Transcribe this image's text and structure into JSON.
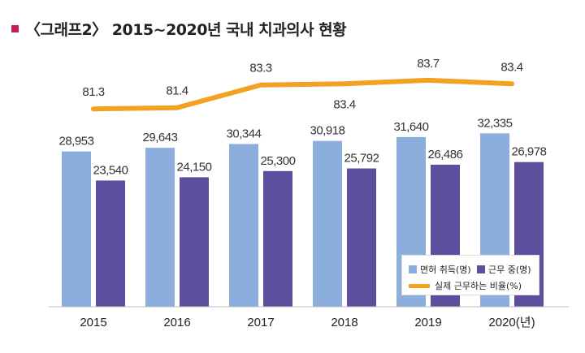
{
  "title": {
    "marker_symbol": "■",
    "text": "〈그래프2〉 2015~2020년 국내 치과의사 현황"
  },
  "colors": {
    "title_marker": "#c41e5a",
    "licensed": "#8caedc",
    "working": "#5d4e9e",
    "ratio": "#f4a020",
    "axis": "#bbbbbb"
  },
  "chart_data": {
    "type": "bar",
    "categories": [
      "2015",
      "2016",
      "2017",
      "2018",
      "2019",
      "2020(년)"
    ],
    "series": [
      {
        "name": "면허 취득(명)",
        "type": "bar",
        "values": [
          28953,
          29643,
          30344,
          30918,
          31640,
          32335
        ],
        "labels": [
          "28,953",
          "29,643",
          "30,344",
          "30,918",
          "31,640",
          "32,335"
        ]
      },
      {
        "name": "근무 중(명)",
        "type": "bar",
        "values": [
          23540,
          24150,
          25300,
          25792,
          26486,
          26978
        ],
        "labels": [
          "23,540",
          "24,150",
          "25,300",
          "25,792",
          "26,486",
          "26,978"
        ]
      },
      {
        "name": "실제 근무하는 비율(%)",
        "type": "line",
        "values": [
          81.3,
          81.4,
          83.3,
          83.4,
          83.7,
          83.4
        ],
        "labels": [
          "81.3",
          "81.4",
          "83.3",
          "83.4",
          "83.7",
          "83.4"
        ]
      }
    ],
    "ylim": [
      0,
      34500
    ],
    "ratio_ylim": [
      80.5,
      84.3
    ],
    "grid": false,
    "legend_position": "bottom-right"
  }
}
